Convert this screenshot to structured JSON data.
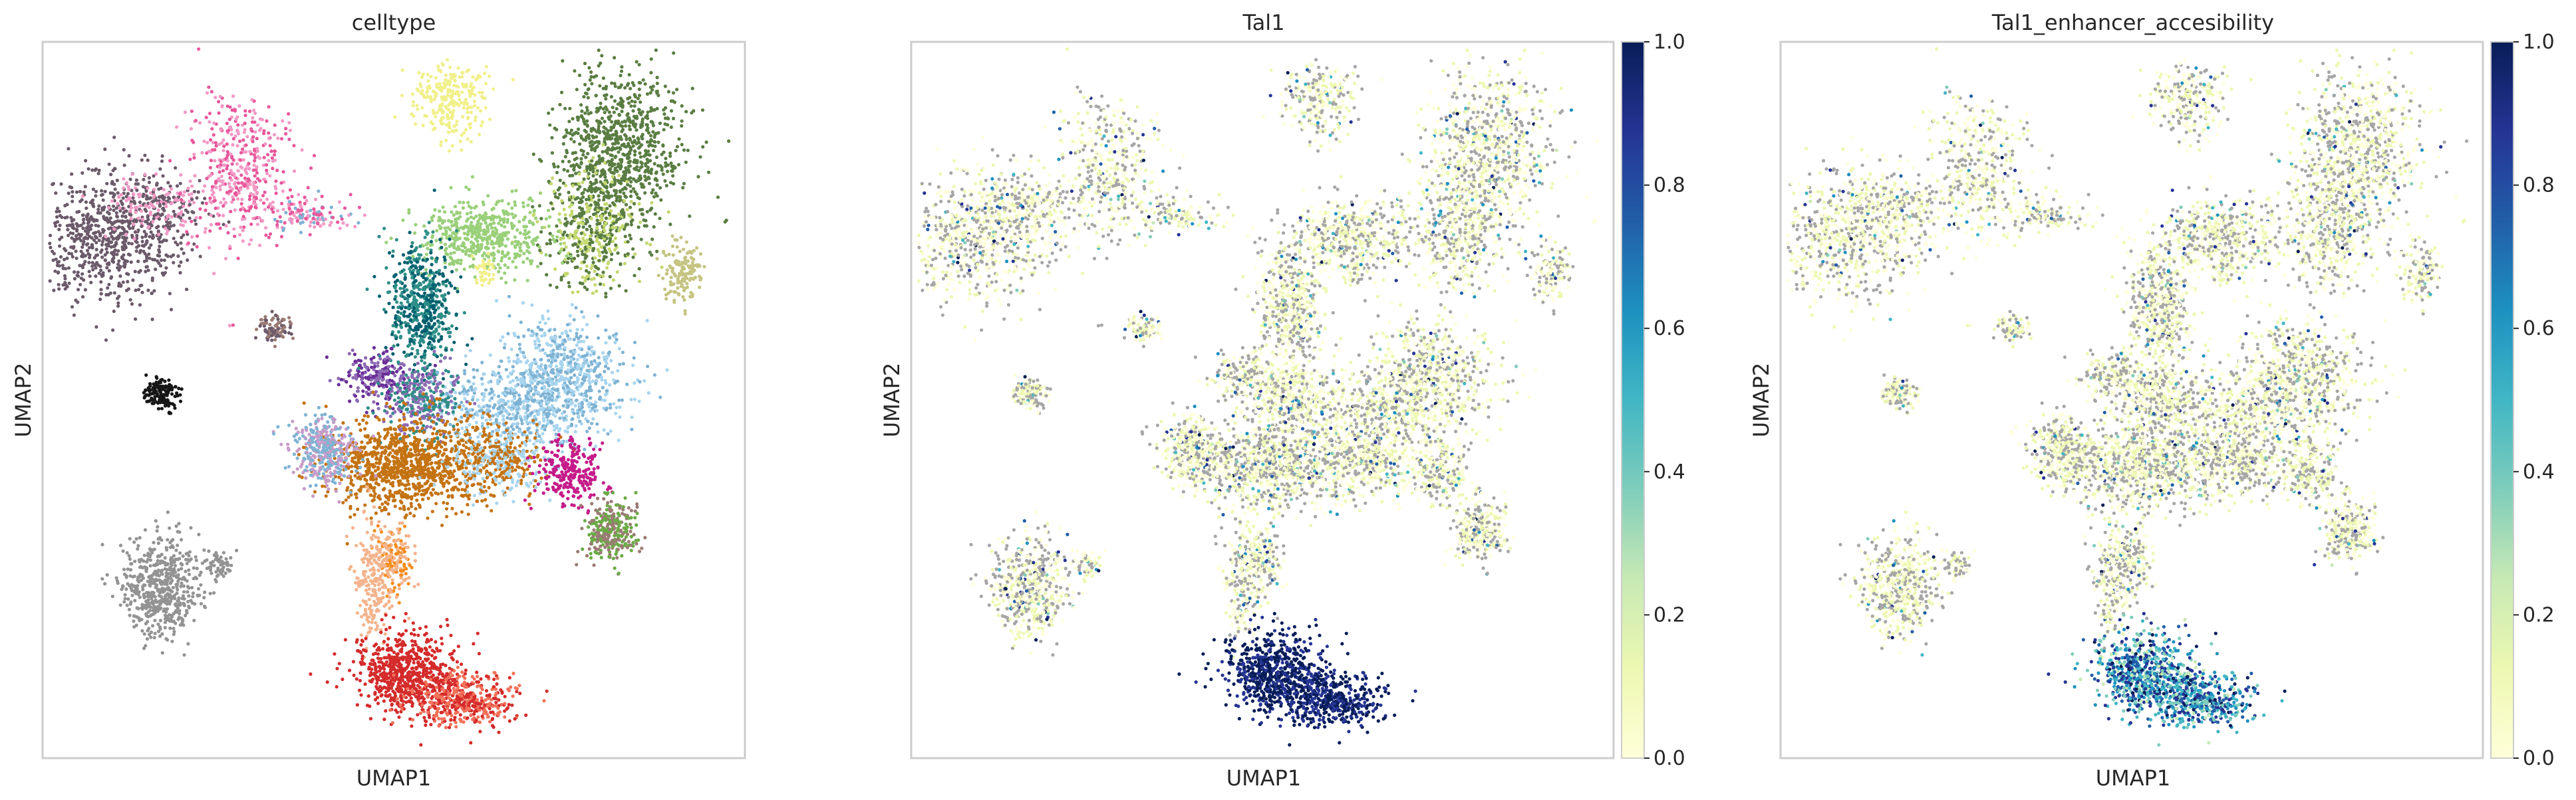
{
  "chart_data": [
    {
      "type": "scatter",
      "title": "celltype",
      "xlabel": "UMAP1",
      "ylabel": "UMAP2",
      "grid": false,
      "legend": "none",
      "x_range": [
        0,
        100
      ],
      "y_range": [
        0,
        100
      ],
      "colors": [
        "#6b5a6a",
        "#e8579b",
        "#f29ac6",
        "#f1f08a",
        "#5a7d42",
        "#9ad07a",
        "#c5d96f",
        "#00606f",
        "#2f8f88",
        "#7fb3d3",
        "#a8d5ef",
        "#6a2d98",
        "#8e6bb4",
        "#c47312",
        "#c51b8a",
        "#c79cc8",
        "#f48c1a",
        "#f4b48d",
        "#d42b2b",
        "#f3725a",
        "#939393",
        "#c5c481",
        "#6bab45",
        "#9b7b75",
        "#161616"
      ],
      "clusters": [
        {
          "cx": 9,
          "cy": 73,
          "sx": 6,
          "sy": 5,
          "n": 700,
          "colors": [
            0
          ]
        },
        {
          "cx": 16,
          "cy": 77,
          "sx": 4,
          "sy": 2.5,
          "n": 240,
          "colors": [
            0,
            2
          ]
        },
        {
          "cx": 28,
          "cy": 82,
          "sx": 4,
          "sy": 6,
          "n": 450,
          "colors": [
            1,
            2
          ]
        },
        {
          "cx": 38,
          "cy": 76,
          "sx": 3,
          "sy": 1.2,
          "n": 120,
          "colors": [
            1,
            2,
            9
          ]
        },
        {
          "cx": 58,
          "cy": 92,
          "sx": 3,
          "sy": 3,
          "n": 260,
          "colors": [
            3
          ]
        },
        {
          "cx": 82,
          "cy": 85,
          "sx": 5,
          "sy": 6,
          "n": 850,
          "colors": [
            4
          ]
        },
        {
          "cx": 78,
          "cy": 74,
          "sx": 4,
          "sy": 5,
          "n": 450,
          "colors": [
            6,
            4
          ]
        },
        {
          "cx": 63,
          "cy": 73,
          "sx": 5,
          "sy": 3,
          "n": 500,
          "colors": [
            5
          ]
        },
        {
          "cx": 54,
          "cy": 63,
          "sx": 2.5,
          "sy": 5,
          "n": 550,
          "colors": [
            7,
            8
          ]
        },
        {
          "cx": 74,
          "cy": 53,
          "sx": 5,
          "sy": 5,
          "n": 700,
          "colors": [
            9,
            10
          ]
        },
        {
          "cx": 66,
          "cy": 49,
          "sx": 6,
          "sy": 3,
          "n": 420,
          "colors": [
            10,
            9
          ]
        },
        {
          "cx": 48,
          "cy": 53,
          "sx": 3,
          "sy": 2,
          "n": 220,
          "colors": [
            11,
            12
          ]
        },
        {
          "cx": 54,
          "cy": 50,
          "sx": 3,
          "sy": 3,
          "n": 320,
          "colors": [
            12,
            8
          ]
        },
        {
          "cx": 52,
          "cy": 41,
          "sx": 6,
          "sy": 3.5,
          "n": 1000,
          "colors": [
            13
          ]
        },
        {
          "cx": 65,
          "cy": 42,
          "sx": 4,
          "sy": 3,
          "n": 420,
          "colors": [
            13,
            10
          ]
        },
        {
          "cx": 75,
          "cy": 40,
          "sx": 2.5,
          "sy": 2.5,
          "n": 260,
          "colors": [
            14
          ]
        },
        {
          "cx": 40,
          "cy": 43,
          "sx": 2.5,
          "sy": 2.5,
          "n": 380,
          "colors": [
            15,
            9
          ]
        },
        {
          "cx": 50,
          "cy": 28,
          "sx": 1.5,
          "sy": 3,
          "n": 180,
          "colors": [
            16,
            17
          ]
        },
        {
          "cx": 47,
          "cy": 24,
          "sx": 1.5,
          "sy": 5,
          "n": 220,
          "colors": [
            17
          ]
        },
        {
          "cx": 52,
          "cy": 12,
          "sx": 4,
          "sy": 3,
          "n": 650,
          "colors": [
            18
          ]
        },
        {
          "cx": 60,
          "cy": 8,
          "sx": 4,
          "sy": 2,
          "n": 450,
          "colors": [
            19,
            18
          ]
        },
        {
          "cx": 17,
          "cy": 24,
          "sx": 3,
          "sy": 4,
          "n": 550,
          "colors": [
            20
          ]
        },
        {
          "cx": 25,
          "cy": 27,
          "sx": 1.5,
          "sy": 1,
          "n": 60,
          "colors": [
            20
          ]
        },
        {
          "cx": 81,
          "cy": 32,
          "sx": 2,
          "sy": 2.5,
          "n": 300,
          "colors": [
            22,
            23
          ]
        },
        {
          "cx": 91,
          "cy": 68,
          "sx": 1.5,
          "sy": 2.5,
          "n": 140,
          "colors": [
            21
          ]
        },
        {
          "cx": 33,
          "cy": 60,
          "sx": 1.5,
          "sy": 1,
          "n": 80,
          "colors": [
            23,
            0
          ]
        },
        {
          "cx": 17,
          "cy": 51,
          "sx": 1.5,
          "sy": 1.2,
          "n": 140,
          "colors": [
            24
          ]
        },
        {
          "cx": 63,
          "cy": 68,
          "sx": 0.8,
          "sy": 1.2,
          "n": 40,
          "colors": [
            3
          ]
        }
      ]
    },
    {
      "type": "scatter",
      "title": "Tal1",
      "xlabel": "UMAP1",
      "ylabel": "UMAP2",
      "grid": false,
      "legend": "none",
      "x_range": [
        0,
        100
      ],
      "y_range": [
        0,
        100
      ],
      "colorbar": {
        "min": 0.0,
        "max": 1.0,
        "ticks": [
          "0.0",
          "0.2",
          "0.4",
          "0.6",
          "0.8",
          "1.0"
        ],
        "colormap": "YlGnBu"
      },
      "expression": "high in erythroid cluster (lower center), sparse low elsewhere"
    },
    {
      "type": "scatter",
      "title": "Tal1_enhancer_accesibility",
      "xlabel": "UMAP1",
      "ylabel": "UMAP2",
      "grid": false,
      "legend": "none",
      "x_range": [
        0,
        100
      ],
      "y_range": [
        0,
        100
      ],
      "colorbar": {
        "min": 0.0,
        "max": 1.0,
        "ticks": [
          "0.0",
          "0.2",
          "0.4",
          "0.6",
          "0.8",
          "1.0"
        ],
        "colormap": "YlGnBu"
      },
      "expression": "moderate in erythroid cluster, sparse low elsewhere"
    }
  ]
}
